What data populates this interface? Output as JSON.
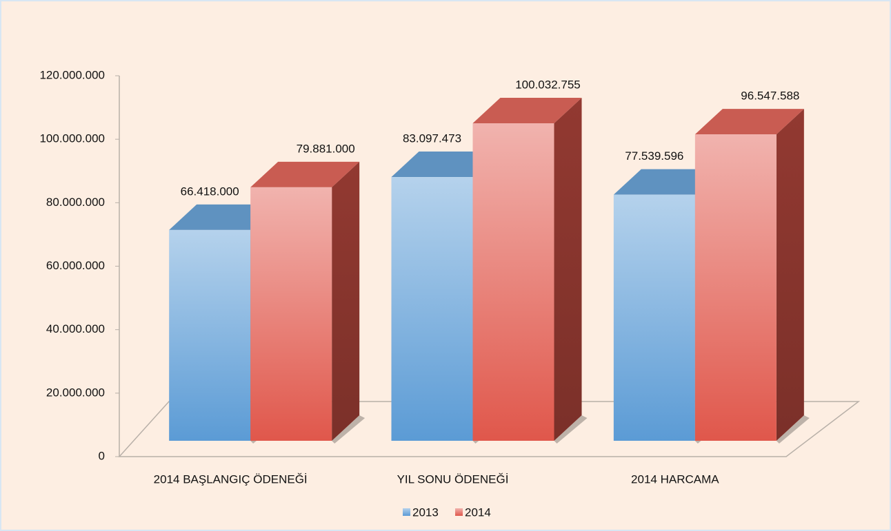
{
  "chart_data": {
    "type": "bar3d",
    "categories": [
      "2014 BAŞLANGIÇ ÖDENEĞİ",
      "YIL SONU ÖDENEĞİ",
      "2014 HARCAMA"
    ],
    "series": [
      {
        "name": "2013",
        "color": "#5b9bd5",
        "values": [
          66418000,
          83097473,
          77539596
        ],
        "value_labels": [
          "66.418.000",
          "83.097.473",
          "77.539.596"
        ]
      },
      {
        "name": "2014",
        "color": "#e0574b",
        "values": [
          79881000,
          100032755,
          96547588
        ],
        "value_labels": [
          "79.881.000",
          "100.032.755",
          "96.547.588"
        ]
      }
    ],
    "ylim": [
      0,
      120000000
    ],
    "yticks": [
      0,
      {
        "value": 20000000,
        "label": "20.000.000"
      },
      {
        "value": 40000000,
        "label": "40.000.000"
      },
      {
        "value": 60000000,
        "label": "60.000.000"
      },
      {
        "value": 80000000,
        "label": "80.000.000"
      },
      {
        "value": 100000000,
        "label": "100.000.000"
      },
      {
        "value": 120000000,
        "label": "120.000.000"
      }
    ],
    "legend": "bottom"
  }
}
